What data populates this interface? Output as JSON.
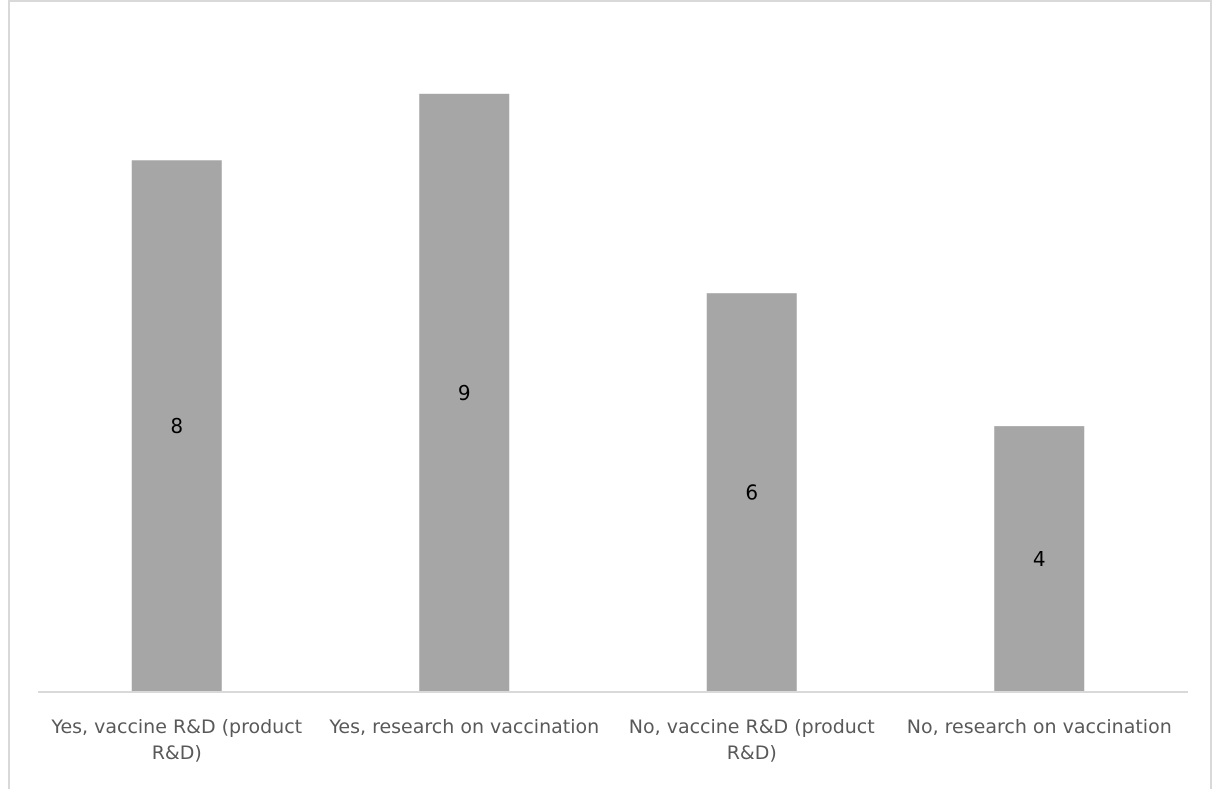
{
  "chart_data": {
    "type": "bar",
    "title": "",
    "categories": [
      "Yes, vaccine R&D (product R&D)",
      "Yes, research on vaccination",
      "No, vaccine R&D (product R&D)",
      "No, research on vaccination"
    ],
    "values": [
      8,
      9,
      6,
      4
    ],
    "ylim": [
      0,
      9.9
    ],
    "grid": false,
    "legend": "none",
    "colors": {
      "bar": "#a6a6a6",
      "axis": "#d9d9d9",
      "label": "#000000",
      "tick_label": "#595959"
    }
  }
}
